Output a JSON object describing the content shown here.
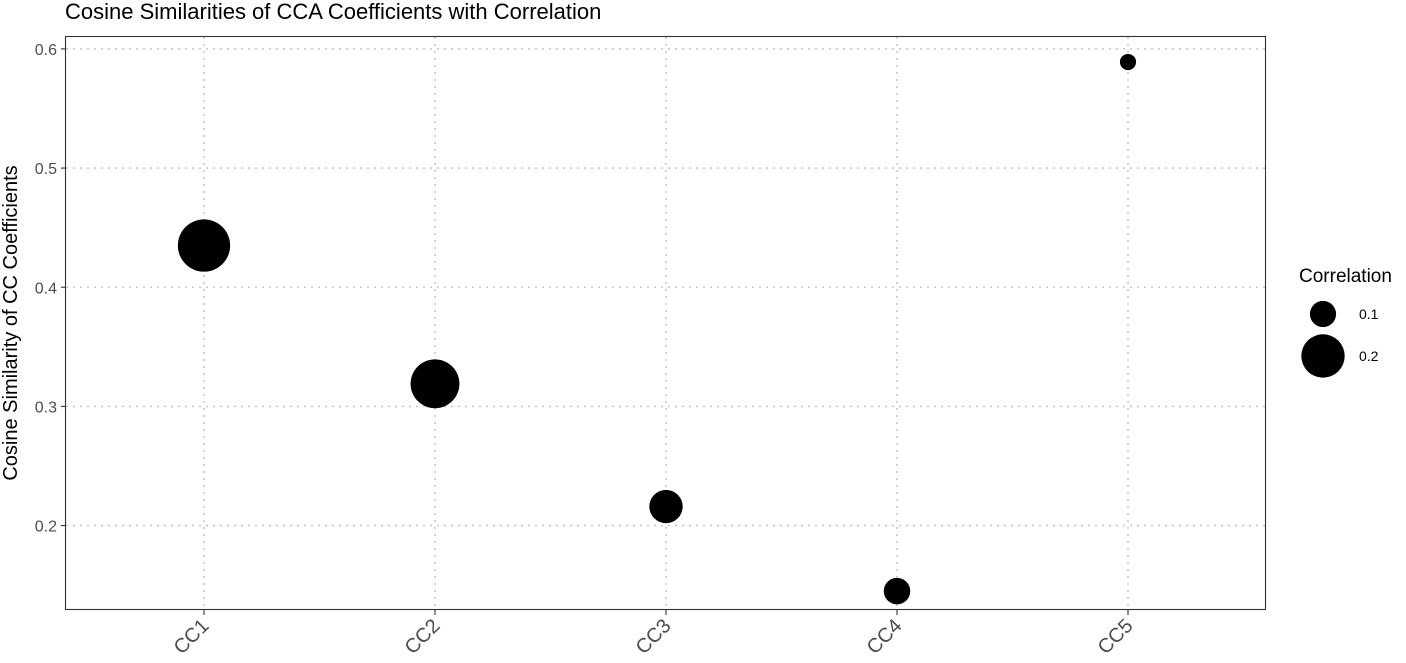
{
  "chart_data": {
    "type": "scatter",
    "title": "Cosine Similarities of CCA Coefficients with Correlation",
    "xlabel": "",
    "ylabel": "Cosine Similarity of CC Coefficients",
    "categories": [
      "CC1",
      "CC2",
      "CC3",
      "CC4",
      "CC5"
    ],
    "y_ticks": [
      0.2,
      0.3,
      0.4,
      0.5,
      0.6
    ],
    "y_tick_labels": [
      "0.2",
      "0.3",
      "0.4",
      "0.5",
      "0.6"
    ],
    "ylim": [
      0.13,
      0.61
    ],
    "grid": true,
    "point_color": "#000000",
    "size_variable": "Correlation",
    "points": [
      {
        "x": "CC1",
        "y": 0.435,
        "correlation": 0.24
      },
      {
        "x": "CC2",
        "y": 0.319,
        "correlation": 0.22
      },
      {
        "x": "CC3",
        "y": 0.216,
        "correlation": 0.13
      },
      {
        "x": "CC4",
        "y": 0.145,
        "correlation": 0.09
      },
      {
        "x": "CC5",
        "y": 0.589,
        "correlation": 0.03
      }
    ],
    "legend": {
      "title": "Correlation",
      "placement": "right",
      "entries": [
        {
          "label": "0.1",
          "value": 0.1
        },
        {
          "label": "0.2",
          "value": 0.2
        }
      ]
    }
  }
}
